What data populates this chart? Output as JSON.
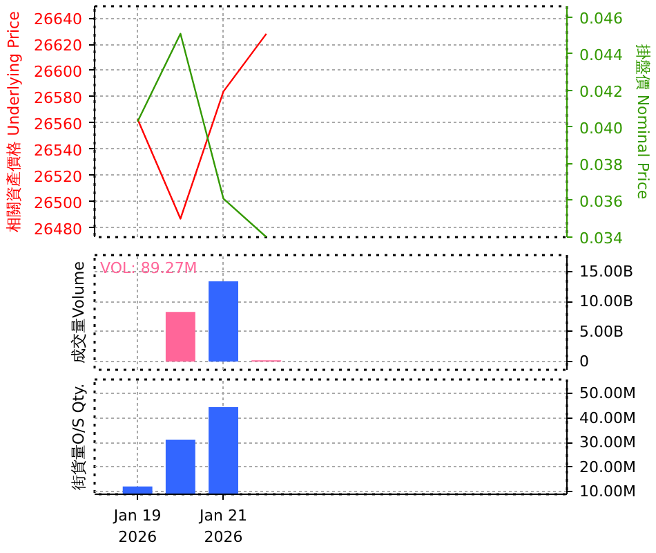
{
  "chart_data": [
    {
      "type": "line",
      "ylabel": "相關資產價格 Underlying Price",
      "y2label": "掛盤價 Nominal Price",
      "x": [
        "2026-01-19",
        "2026-01-20",
        "2026-01-21",
        "2026-01-22"
      ],
      "series": [
        {
          "color": "#ff0000",
          "values": [
            26563,
            26487,
            26584,
            26628
          ]
        },
        {
          "color": "#339900",
          "axis": "y2",
          "values": [
            0.0403,
            0.0451,
            0.0361,
            0.034
          ]
        }
      ],
      "xlim": [
        "2026-01-18",
        "2026-01-29"
      ],
      "xticks": [
        {
          "value": "2026-01-19",
          "label": null
        },
        {
          "value": "2026-01-21",
          "label": null
        }
      ],
      "ylim": [
        26473,
        26649
      ],
      "yticks": [
        26480,
        26500,
        26520,
        26540,
        26560,
        26580,
        26600,
        26620,
        26640
      ],
      "y2lim": [
        0.034,
        0.0466
      ],
      "y2ticks": [
        {
          "value": 0.034,
          "label": "0.034"
        },
        {
          "value": 0.036,
          "label": "0.036"
        },
        {
          "value": 0.038,
          "label": "0.038"
        },
        {
          "value": 0.04,
          "label": "0.040"
        },
        {
          "value": 0.042,
          "label": "0.042"
        },
        {
          "value": 0.044,
          "label": "0.044"
        },
        {
          "value": 0.046,
          "label": "0.046"
        }
      ],
      "grid": true,
      "tick_labels": "y"
    },
    {
      "type": "bar",
      "ylabel": "成交量Volume",
      "annotations": [
        "VOL: 89.27M"
      ],
      "x": [
        "2026-01-20",
        "2026-01-21",
        "2026-01-22"
      ],
      "values": [
        8300000000,
        13400000000,
        200000000
      ],
      "colors": [
        "#ff6699",
        "#3366ff",
        "#ff6699"
      ],
      "xlim": [
        "2026-01-18",
        "2026-01-29"
      ],
      "xticks": [
        {
          "value": "2026-01-19",
          "label": null
        },
        {
          "value": "2026-01-21",
          "label": null
        }
      ],
      "ylim": [
        -1400000000,
        17800000000
      ],
      "yticks": [
        0,
        {
          "value": 5000000000,
          "label": "5.00B"
        },
        {
          "value": 10000000000,
          "label": "10.00B"
        },
        {
          "value": 15000000000,
          "label": "15.00B"
        }
      ],
      "grid": true,
      "tick_labels": "y"
    },
    {
      "type": "bar",
      "ylabel": "街貨量O/S Qty.",
      "x": [
        "2026-01-19",
        "2026-01-20",
        "2026-01-21"
      ],
      "values": [
        12100000,
        31200000,
        44400000
      ],
      "color": "#3366ff",
      "xlim": [
        "2026-01-18",
        "2026-01-29"
      ],
      "xticks": [
        {
          "value": "2026-01-19",
          "label": "Jan 19\n2026"
        },
        {
          "value": "2026-01-21",
          "label": "Jan 21\n2026"
        }
      ],
      "ylim": [
        8900000,
        55700000
      ],
      "yticks": [
        {
          "value": 10000000,
          "label": "10.00M"
        },
        {
          "value": 20000000,
          "label": "20.00M"
        },
        {
          "value": 30000000,
          "label": "30.00M"
        },
        {
          "value": 40000000,
          "label": "40.00M"
        },
        {
          "value": 50000000,
          "label": "50.00M"
        }
      ],
      "grid": true
    }
  ]
}
